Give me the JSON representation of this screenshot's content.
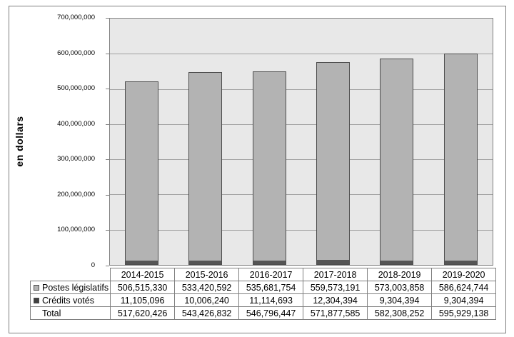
{
  "chart_data": {
    "type": "bar",
    "stacked": true,
    "title": "",
    "ylabel": "en dollars",
    "xlabel": "",
    "categories": [
      "2014-2015",
      "2015-2016",
      "2016-2017",
      "2017-2018",
      "2018-2019",
      "2019-2020"
    ],
    "series": [
      {
        "name": "Postes législatifs",
        "color": "#b3b3b3",
        "values": [
          506515330,
          533420592,
          535681754,
          559573191,
          573003858,
          586624744
        ]
      },
      {
        "name": "Crédits votés",
        "color": "#555555",
        "values": [
          11105096,
          10006240,
          11114693,
          12304394,
          9304394,
          9304394
        ]
      }
    ],
    "totals": [
      517620426,
      543426832,
      546796447,
      571877585,
      582308252,
      595929138
    ],
    "ylim": [
      0,
      700000000
    ],
    "ytick_labels_top_to_bottom": [
      "700,000,000",
      "600,000,000",
      "500,000,000",
      "400,000,000",
      "300,000,000",
      "200,000,000",
      "100,000,000",
      "0"
    ],
    "grid": true,
    "legend_position": "table-below"
  },
  "table": {
    "columns": [
      "2014-2015",
      "2015-2016",
      "2016-2017",
      "2017-2018",
      "2018-2019",
      "2019-2020"
    ],
    "rows": [
      {
        "label": "Postes législatifs",
        "marker_color": "#b3b3b3",
        "values": [
          "506,515,330",
          "533,420,592",
          "535,681,754",
          "559,573,191",
          "573,003,858",
          "586,624,744"
        ]
      },
      {
        "label": "Crédits votés",
        "marker_color": "#404040",
        "values": [
          "11,105,096",
          "10,006,240",
          "11,114,693",
          "12,304,394",
          "9,304,394",
          "9,304,394"
        ]
      },
      {
        "label": "Total",
        "marker_color": null,
        "values": [
          "517,620,426",
          "543,426,832",
          "546,796,447",
          "571,877,585",
          "582,308,252",
          "595,929,138"
        ]
      }
    ]
  },
  "colors": {
    "plot_background": "#e8e8e8",
    "gridline": "#a0a0a0",
    "axis_border": "#808080",
    "bar_fill": "#b3b3b3",
    "bar_border": "#4d4d4d",
    "dark_series_fill": "#555555",
    "table_border": "#7f7f7f",
    "frame_border": "#7f7f7f"
  }
}
